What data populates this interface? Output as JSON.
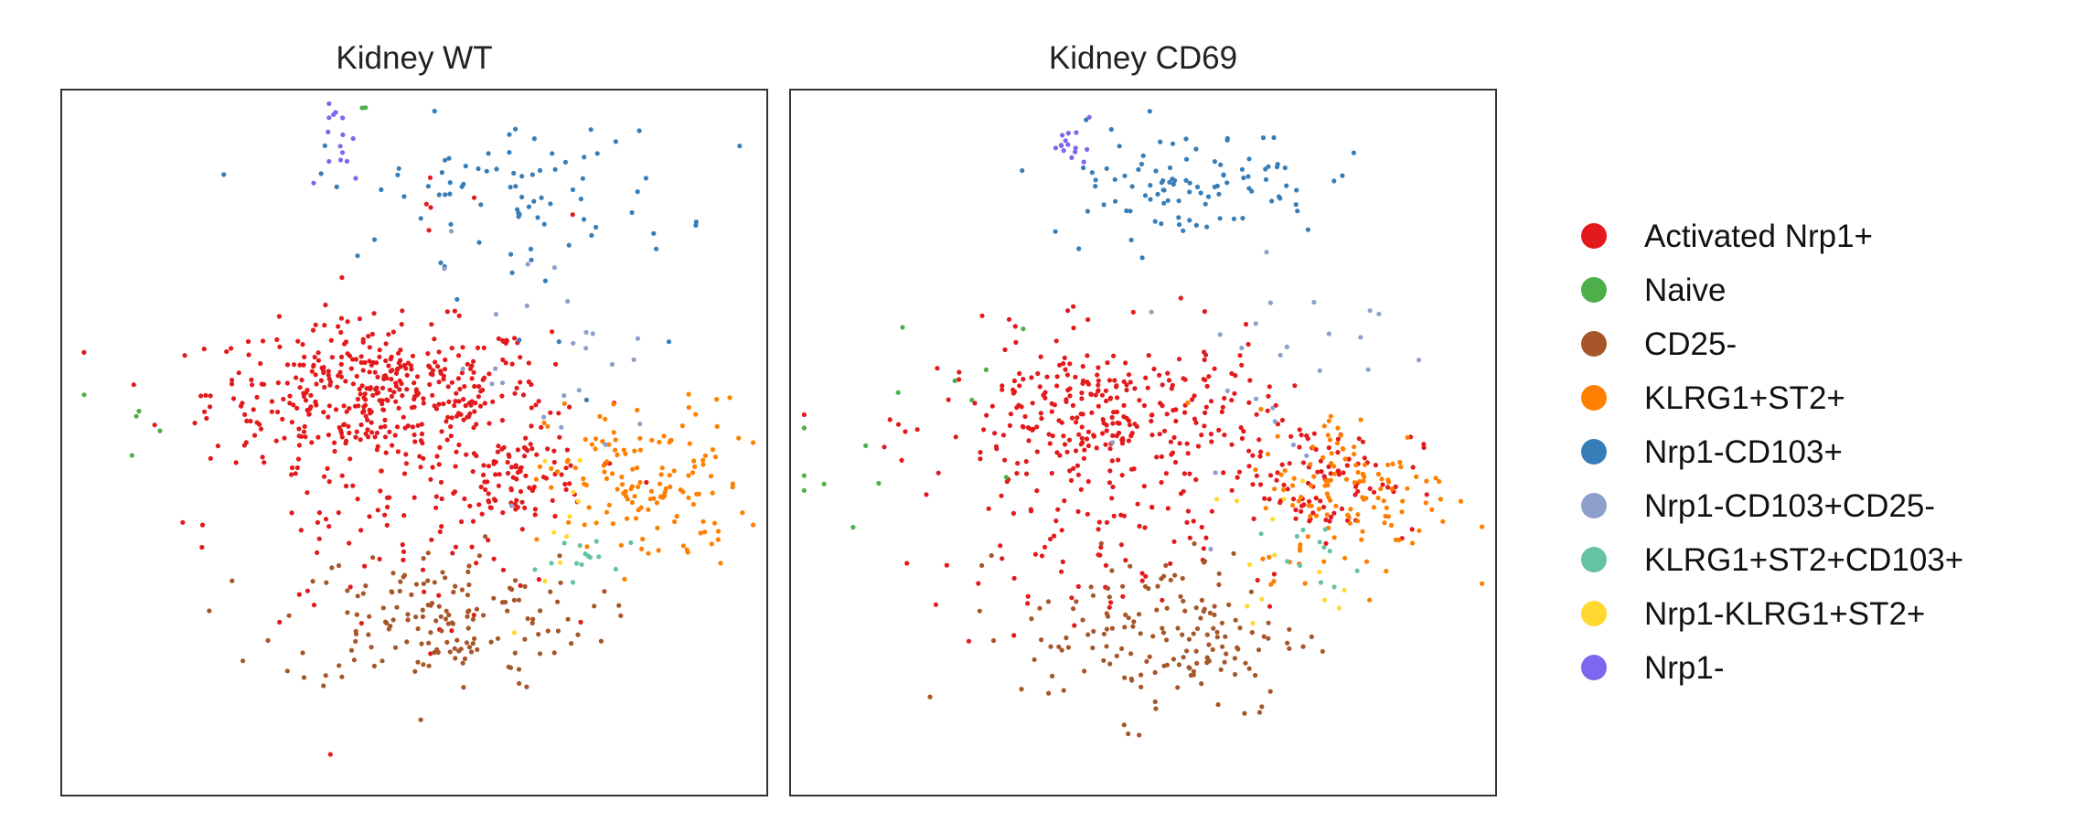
{
  "chart_data": [
    {
      "type": "scatter",
      "title": "Kidney WT",
      "xlabel": "",
      "ylabel": "",
      "xlim": [
        0,
        100
      ],
      "ylim": [
        0,
        100
      ],
      "grid": false,
      "clusters": [
        {
          "name": "Activated Nrp1+",
          "center": [
            45,
            57
          ],
          "spread": [
            12,
            5
          ],
          "count": 430
        },
        {
          "name": "Activated Nrp1+",
          "center": [
            65,
            45
          ],
          "spread": [
            5,
            3
          ],
          "count": 90
        },
        {
          "name": "Activated Nrp1+",
          "center": [
            45,
            38
          ],
          "spread": [
            12,
            8
          ],
          "count": 90
        },
        {
          "name": "Activated Nrp1+",
          "center": [
            55,
            84
          ],
          "spread": [
            10,
            4
          ],
          "count": 6
        },
        {
          "name": "Naive",
          "center": [
            12,
            50
          ],
          "spread": [
            8,
            8
          ],
          "count": 5
        },
        {
          "name": "Naive",
          "center": [
            42,
            98
          ],
          "spread": [
            2,
            1
          ],
          "count": 2
        },
        {
          "name": "CD25-",
          "center": [
            53,
            25
          ],
          "spread": [
            11,
            5
          ],
          "count": 160
        },
        {
          "name": "KLRG1+ST2+",
          "center": [
            83,
            44
          ],
          "spread": [
            7,
            6
          ],
          "count": 140
        },
        {
          "name": "Nrp1-CD103+",
          "center": [
            62,
            86
          ],
          "spread": [
            13,
            5
          ],
          "count": 80
        },
        {
          "name": "Nrp1-CD103+",
          "center": [
            82,
            65
          ],
          "spread": [
            10,
            8
          ],
          "count": 6
        },
        {
          "name": "Nrp1-CD103+CD25-",
          "center": [
            68,
            62
          ],
          "spread": [
            8,
            8
          ],
          "count": 25
        },
        {
          "name": "KLRG1+ST2+CD103+",
          "center": [
            76,
            33
          ],
          "spread": [
            4,
            2
          ],
          "count": 14
        },
        {
          "name": "Nrp1-KLRG1+ST2+",
          "center": [
            71,
            40
          ],
          "spread": [
            5,
            6
          ],
          "count": 10
        },
        {
          "name": "Nrp1-",
          "center": [
            40,
            92
          ],
          "spread": [
            1.5,
            3
          ],
          "count": 15
        }
      ]
    },
    {
      "type": "scatter",
      "title": "Kidney CD69",
      "xlabel": "",
      "ylabel": "",
      "xlim": [
        0,
        100
      ],
      "ylim": [
        0,
        100
      ],
      "grid": false,
      "clusters": [
        {
          "name": "Activated Nrp1+",
          "center": [
            45,
            53
          ],
          "spread": [
            12,
            6
          ],
          "count": 330
        },
        {
          "name": "Activated Nrp1+",
          "center": [
            75,
            45
          ],
          "spread": [
            7,
            4
          ],
          "count": 90
        },
        {
          "name": "Activated Nrp1+",
          "center": [
            40,
            33
          ],
          "spread": [
            10,
            6
          ],
          "count": 60
        },
        {
          "name": "Naive",
          "center": [
            15,
            48
          ],
          "spread": [
            9,
            9
          ],
          "count": 14
        },
        {
          "name": "CD25-",
          "center": [
            53,
            23
          ],
          "spread": [
            10,
            6
          ],
          "count": 160
        },
        {
          "name": "KLRG1+ST2+",
          "center": [
            80,
            43
          ],
          "spread": [
            7,
            6
          ],
          "count": 130
        },
        {
          "name": "Nrp1-CD103+",
          "center": [
            56,
            87
          ],
          "spread": [
            10,
            4
          ],
          "count": 100
        },
        {
          "name": "Nrp1-CD103+CD25-",
          "center": [
            68,
            62
          ],
          "spread": [
            8,
            9
          ],
          "count": 25
        },
        {
          "name": "KLRG1+ST2+CD103+",
          "center": [
            74,
            34
          ],
          "spread": [
            3,
            2
          ],
          "count": 12
        },
        {
          "name": "Nrp1-KLRG1+ST2+",
          "center": [
            71,
            33
          ],
          "spread": [
            6,
            7
          ],
          "count": 14
        },
        {
          "name": "Nrp1-",
          "center": [
            40,
            92
          ],
          "spread": [
            1.5,
            1.5
          ],
          "count": 15
        }
      ]
    }
  ],
  "legend": {
    "position": "right",
    "entries": [
      {
        "label": "Activated Nrp1+",
        "color": "#e31a1c"
      },
      {
        "label": "Naive",
        "color": "#4daf4a"
      },
      {
        "label": "CD25-",
        "color": "#a65628"
      },
      {
        "label": "KLRG1+ST2+",
        "color": "#ff7f00"
      },
      {
        "label": "Nrp1-CD103+",
        "color": "#377eb8"
      },
      {
        "label": "Nrp1-CD103+CD25-",
        "color": "#8da0cb"
      },
      {
        "label": "KLRG1+ST2+CD103+",
        "color": "#66c2a5"
      },
      {
        "label": "Nrp1-KLRG1+ST2+",
        "color": "#ffd92f"
      },
      {
        "label": "Nrp1-",
        "color": "#7b68ee"
      }
    ]
  }
}
